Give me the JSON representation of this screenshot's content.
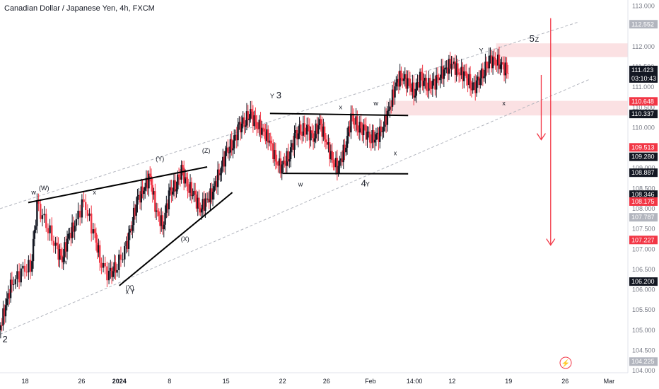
{
  "chart_data": {
    "type": "candlestick",
    "title": "Canadian Dollar / Japanese Yen, 4h, FXCM",
    "ylim": [
      103.95,
      113.15
    ],
    "y_ticks": [
      "104.000",
      "104.500",
      "105.000",
      "105.500",
      "106.000",
      "106.500",
      "107.000",
      "107.500",
      "108.000",
      "108.500",
      "109.000",
      "109.500",
      "110.000",
      "110.500",
      "111.000",
      "111.500",
      "112.000",
      "112.500",
      "113.000"
    ],
    "y_tick_values": [
      104.0,
      104.5,
      105.0,
      105.5,
      106.0,
      106.5,
      107.0,
      107.5,
      108.0,
      108.5,
      109.0,
      109.5,
      110.0,
      110.5,
      111.0,
      111.5,
      112.0,
      112.5,
      113.0
    ],
    "x_ticks": [
      "18",
      "26",
      "2024",
      "8",
      "15",
      "22",
      "26",
      "Feb",
      "14:00",
      "12",
      "19",
      "26",
      "Mar"
    ],
    "x_tick_positions": [
      0.04,
      0.13,
      0.19,
      0.27,
      0.36,
      0.45,
      0.52,
      0.59,
      0.66,
      0.72,
      0.81,
      0.9,
      0.97
    ],
    "bold_x_ticks": [
      "2024"
    ],
    "price_labels": [
      {
        "text": "112.552",
        "value": 112.552,
        "style": "gray"
      },
      {
        "text": "111.423",
        "value": 111.423,
        "style": "dark",
        "sub": "03:10:43"
      },
      {
        "text": "110.648",
        "value": 110.648,
        "style": "red"
      },
      {
        "text": "110.337",
        "value": 110.337,
        "style": "dark"
      },
      {
        "text": "109.513",
        "value": 109.513,
        "style": "red"
      },
      {
        "text": "109.280",
        "value": 109.28,
        "style": "dark"
      },
      {
        "text": "108.887",
        "value": 108.887,
        "style": "dark"
      },
      {
        "text": "108.346",
        "value": 108.346,
        "style": "dark"
      },
      {
        "text": "108.175",
        "value": 108.175,
        "style": "red"
      },
      {
        "text": "107.787",
        "value": 107.787,
        "style": "gray"
      },
      {
        "text": "107.227",
        "value": 107.227,
        "style": "red"
      },
      {
        "text": "106.200",
        "value": 106.2,
        "style": "dark"
      },
      {
        "text": "104.225",
        "value": 104.225,
        "style": "gray"
      }
    ],
    "price_path": [
      [
        0.0,
        105.0
      ],
      [
        0.01,
        105.6
      ],
      [
        0.02,
        106.2
      ],
      [
        0.035,
        106.4
      ],
      [
        0.05,
        106.6
      ],
      [
        0.06,
        108.0
      ],
      [
        0.075,
        107.7
      ],
      [
        0.09,
        107.0
      ],
      [
        0.1,
        106.8
      ],
      [
        0.11,
        107.3
      ],
      [
        0.12,
        107.6
      ],
      [
        0.135,
        108.2
      ],
      [
        0.15,
        107.4
      ],
      [
        0.16,
        106.8
      ],
      [
        0.175,
        106.3
      ],
      [
        0.185,
        106.6
      ],
      [
        0.2,
        106.9
      ],
      [
        0.21,
        107.6
      ],
      [
        0.22,
        108.2
      ],
      [
        0.23,
        108.5
      ],
      [
        0.24,
        108.8
      ],
      [
        0.25,
        107.9
      ],
      [
        0.26,
        107.6
      ],
      [
        0.27,
        108.3
      ],
      [
        0.28,
        108.6
      ],
      [
        0.29,
        108.9
      ],
      [
        0.3,
        108.6
      ],
      [
        0.31,
        108.3
      ],
      [
        0.32,
        108.0
      ],
      [
        0.33,
        108.2
      ],
      [
        0.34,
        108.4
      ],
      [
        0.35,
        108.9
      ],
      [
        0.36,
        109.3
      ],
      [
        0.37,
        109.6
      ],
      [
        0.38,
        109.9
      ],
      [
        0.39,
        110.2
      ],
      [
        0.4,
        110.3
      ],
      [
        0.41,
        110.1
      ],
      [
        0.42,
        109.9
      ],
      [
        0.43,
        109.7
      ],
      [
        0.44,
        109.2
      ],
      [
        0.45,
        109.0
      ],
      [
        0.46,
        109.3
      ],
      [
        0.47,
        109.7
      ],
      [
        0.48,
        110.0
      ],
      [
        0.49,
        109.9
      ],
      [
        0.5,
        109.8
      ],
      [
        0.51,
        110.1
      ],
      [
        0.52,
        109.7
      ],
      [
        0.53,
        109.2
      ],
      [
        0.54,
        109.0
      ],
      [
        0.55,
        109.5
      ],
      [
        0.56,
        110.2
      ],
      [
        0.57,
        110.1
      ],
      [
        0.58,
        109.9
      ],
      [
        0.59,
        109.8
      ],
      [
        0.6,
        109.7
      ],
      [
        0.61,
        110.0
      ],
      [
        0.62,
        110.4
      ],
      [
        0.63,
        111.0
      ],
      [
        0.64,
        111.3
      ],
      [
        0.65,
        111.1
      ],
      [
        0.66,
        110.9
      ],
      [
        0.67,
        111.2
      ],
      [
        0.68,
        111.1
      ],
      [
        0.69,
        111.0
      ],
      [
        0.7,
        111.3
      ],
      [
        0.71,
        111.4
      ],
      [
        0.72,
        111.6
      ],
      [
        0.73,
        111.4
      ],
      [
        0.74,
        111.3
      ],
      [
        0.75,
        111.1
      ],
      [
        0.76,
        111.0
      ],
      [
        0.77,
        111.4
      ],
      [
        0.78,
        111.6
      ],
      [
        0.79,
        111.7
      ],
      [
        0.8,
        111.5
      ],
      [
        0.81,
        111.4
      ]
    ],
    "zones": [
      {
        "from": 111.74,
        "to": 112.08,
        "x_start": 0.79
      },
      {
        "from": 110.3,
        "to": 110.66,
        "x_start": 0.615
      }
    ],
    "channel": {
      "upper": [
        [
          0.0,
          108.0
        ],
        [
          0.92,
          112.6
        ]
      ],
      "lower": [
        [
          0.0,
          104.9
        ],
        [
          0.94,
          111.2
        ]
      ]
    },
    "wave_lines": [
      [
        [
          0.045,
          108.15
        ],
        [
          0.33,
          109.03
        ]
      ],
      [
        [
          0.19,
          106.1
        ],
        [
          0.37,
          108.4
        ]
      ],
      [
        [
          0.43,
          110.35
        ],
        [
          0.65,
          110.3
        ]
      ],
      [
        [
          0.45,
          108.87
        ],
        [
          0.65,
          108.86
        ]
      ]
    ],
    "wave_labels": [
      {
        "text": "2",
        "x": 0.004,
        "y": 104.7
      },
      {
        "text": "w",
        "x": 0.05,
        "y": 108.35
      },
      {
        "text": "(W)",
        "x": 0.062,
        "y": 108.45
      },
      {
        "text": "x",
        "x": 0.148,
        "y": 108.35
      },
      {
        "text": "w",
        "x": 0.1,
        "y": 106.63
      },
      {
        "text": "x Y",
        "x": 0.2,
        "y": 105.9
      },
      {
        "text": "(X)",
        "x": 0.2,
        "y": 106.0
      },
      {
        "text": "(Y)",
        "x": 0.248,
        "y": 109.18
      },
      {
        "text": "(Z)",
        "x": 0.322,
        "y": 109.38
      },
      {
        "text": "(X)",
        "x": 0.288,
        "y": 107.2
      },
      {
        "text": "Y",
        "x": 0.43,
        "y": 110.72
      },
      {
        "text": "3",
        "x": 0.44,
        "y": 110.72
      },
      {
        "text": "x",
        "x": 0.54,
        "y": 110.45
      },
      {
        "text": "w",
        "x": 0.475,
        "y": 108.55
      },
      {
        "text": "4",
        "x": 0.575,
        "y": 108.55
      },
      {
        "text": "Y",
        "x": 0.582,
        "y": 108.55
      },
      {
        "text": "w",
        "x": 0.595,
        "y": 110.55
      },
      {
        "text": "x",
        "x": 0.627,
        "y": 109.32
      },
      {
        "text": "Y",
        "x": 0.763,
        "y": 111.85
      },
      {
        "text": "5",
        "x": 0.843,
        "y": 112.12
      },
      {
        "text": "Z",
        "x": 0.852,
        "y": 112.12
      },
      {
        "text": "x",
        "x": 0.8,
        "y": 110.55
      }
    ],
    "arrows": [
      {
        "x": 0.877,
        "from": 112.7,
        "to": 107.1
      },
      {
        "x": 0.862,
        "from": 111.3,
        "to": 109.7
      }
    ]
  }
}
